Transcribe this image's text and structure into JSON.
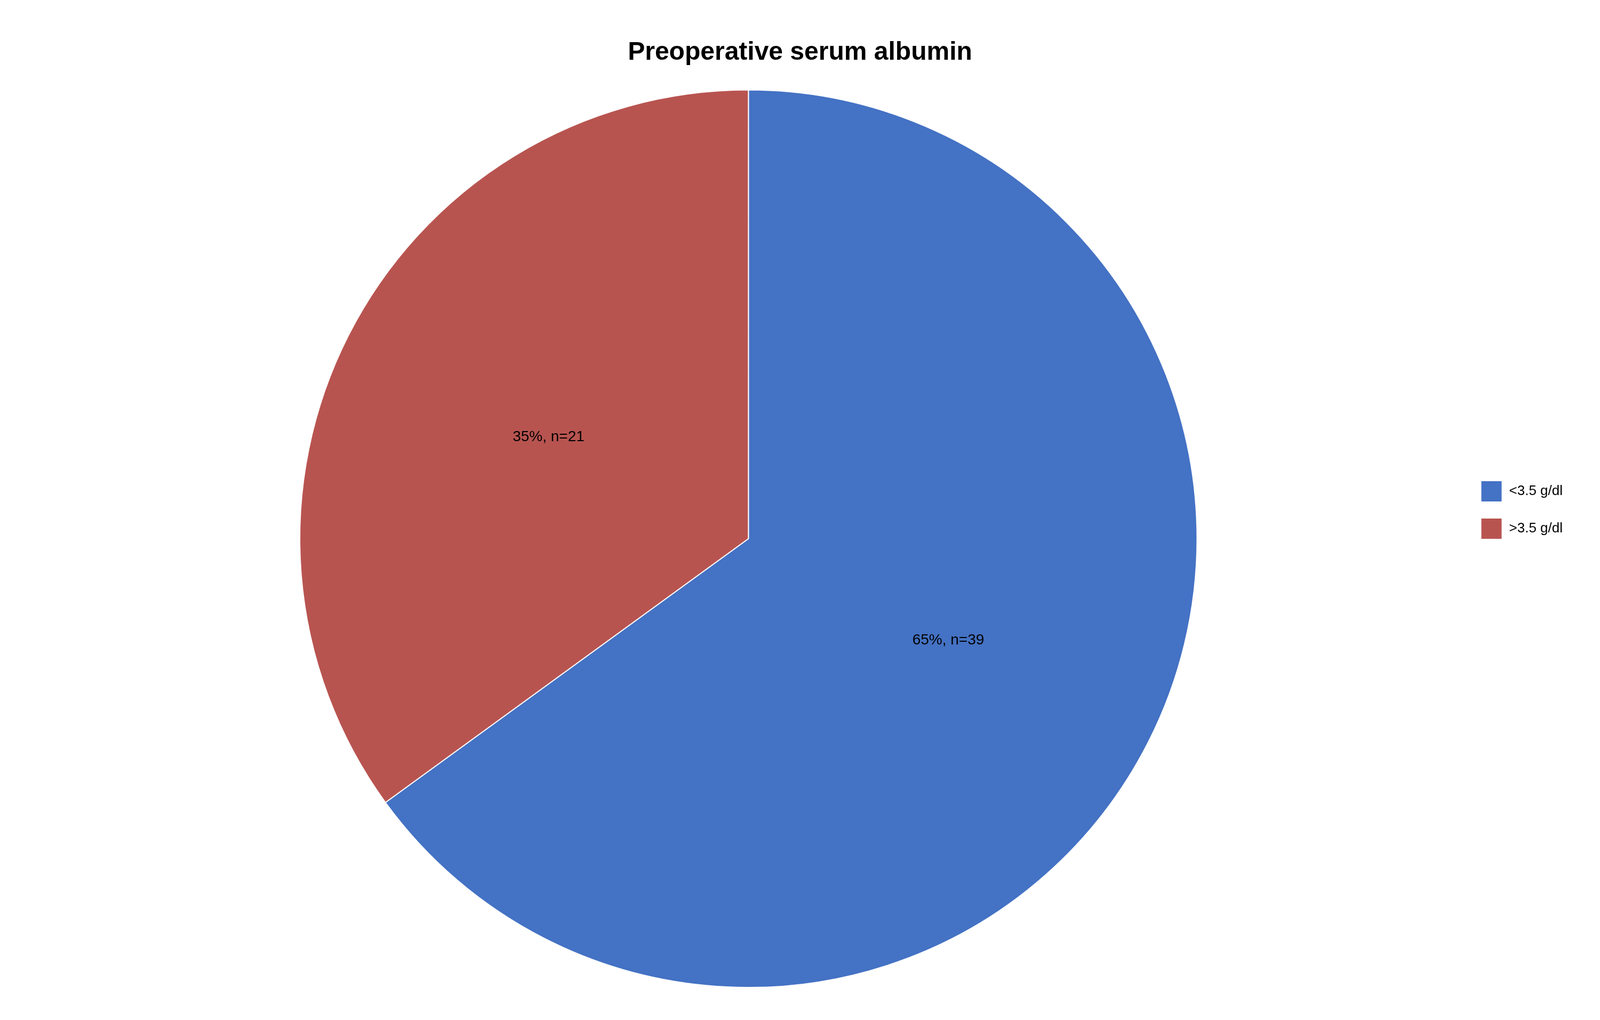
{
  "chart_data": {
    "type": "pie",
    "title": "Preoperative serum albumin",
    "categories": [
      "<3.5 g/dl",
      ">3.5 g/dl"
    ],
    "values": [
      65,
      35
    ],
    "value_labels": [
      "65%, n=39",
      "35%, n=21"
    ],
    "colors": [
      "#4472C4",
      "#B85450"
    ],
    "data_labels": true,
    "legend": "right"
  }
}
